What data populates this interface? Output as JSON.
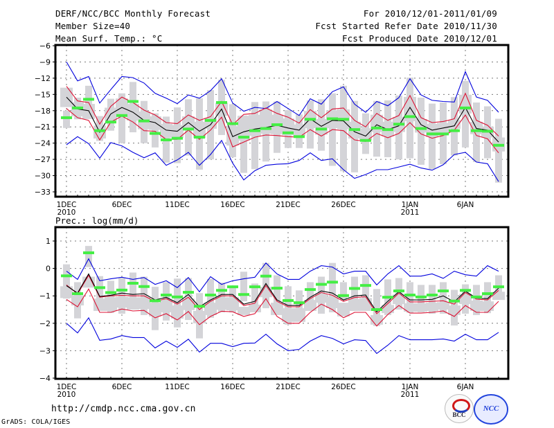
{
  "header": {
    "title": "DERF/NCC/BCC Monthly Forecast",
    "member_size": "Member Size=40",
    "variable1": "Mean Surf. Temp.: °C",
    "period": "For 2010/12/01-2011/01/09",
    "fcst_started": "Fcst Started Refer Date 2010/11/30",
    "fcst_produced": "Fcst Produced Date 2010/12/01"
  },
  "footer": {
    "url": "http://cmdp.ncc.cma.gov.cn",
    "credit": "GrADS: COLA/IGES",
    "logo1": "BCC",
    "logo2": "NCC"
  },
  "colors": {
    "outer": "#0000dd",
    "inner": "#dd1133",
    "mean": "#000000",
    "obs": "#44ee44",
    "box": "#d4d4d8"
  },
  "chart_data": [
    {
      "type": "line",
      "title": "Mean Surf. Temp.: °C",
      "ylim": [
        -33,
        -6
      ],
      "yticks": [
        -6,
        -9,
        -12,
        -15,
        -18,
        -21,
        -24,
        -27,
        -30,
        -33
      ],
      "xtick_labels": [
        {
          "day": 0,
          "label": "1DEC",
          "sub": "2010"
        },
        {
          "day": 5,
          "label": "6DEC"
        },
        {
          "day": 10,
          "label": "11DEC"
        },
        {
          "day": 15,
          "label": "16DEC"
        },
        {
          "day": 20,
          "label": "21DEC"
        },
        {
          "day": 25,
          "label": "26DEC"
        },
        {
          "day": 31,
          "label": "1JAN",
          "sub": "2011"
        },
        {
          "day": 36,
          "label": "6JAN"
        }
      ],
      "grid": true,
      "n_days": 40,
      "series": [
        {
          "name": "max",
          "role": "outer",
          "values": [
            -9,
            -12.5,
            -11.7,
            -16.6,
            -14.1,
            -11.7,
            -11.9,
            -12.9,
            -14.8,
            -15.7,
            -16.7,
            -15.1,
            -15.7,
            -14.3,
            -12.1,
            -16.6,
            -18.1,
            -17.4,
            -17.6,
            -16.3,
            -17.6,
            -18.9,
            -15.8,
            -16.8,
            -14.5,
            -13.6,
            -16.8,
            -18.3,
            -16.3,
            -17.1,
            -15.6,
            -12.1,
            -15.1,
            -16.1,
            -16.3,
            -16.4,
            -10.8,
            -15.5,
            -16.1,
            -18.3
          ]
        },
        {
          "name": "p75",
          "role": "inner",
          "values": [
            -13.5,
            -16.2,
            -16.5,
            -20.5,
            -17.2,
            -15.5,
            -16.5,
            -17.9,
            -18.8,
            -20.2,
            -20.4,
            -18.8,
            -19.8,
            -19.1,
            -16.3,
            -20.6,
            -18.7,
            -18.5,
            -17.5,
            -18.5,
            -19.2,
            -20.3,
            -17.8,
            -19.3,
            -17.7,
            -17.5,
            -19.8,
            -21.0,
            -18.5,
            -19.8,
            -18.9,
            -15.2,
            -19.3,
            -20.2,
            -20.0,
            -19.5,
            -14.8,
            -19.8,
            -20.7,
            -22.7
          ]
        },
        {
          "name": "mean",
          "role": "mean",
          "values": [
            -15.5,
            -17.7,
            -18,
            -22,
            -18.6,
            -17.4,
            -18.3,
            -19.8,
            -20.2,
            -21.6,
            -21.8,
            -20.2,
            -21.8,
            -20.6,
            -17.7,
            -22.8,
            -21.9,
            -21.4,
            -21.1,
            -20.7,
            -21.2,
            -21.6,
            -19.5,
            -20.9,
            -19.8,
            -19.9,
            -21.9,
            -22.7,
            -20.6,
            -21.5,
            -20.8,
            -17.4,
            -20.6,
            -21.6,
            -21.2,
            -20.8,
            -17.4,
            -21.3,
            -21.6,
            -23.8
          ]
        },
        {
          "name": "p25",
          "role": "inner",
          "values": [
            -17.6,
            -19.3,
            -19.8,
            -23.4,
            -20.1,
            -19,
            -20.1,
            -21.7,
            -21.8,
            -23.3,
            -23.3,
            -21.6,
            -23.3,
            -21.6,
            -19.2,
            -24.7,
            -23.8,
            -22.9,
            -22.5,
            -22.6,
            -22.8,
            -22.9,
            -21.5,
            -22.7,
            -21.5,
            -21.7,
            -23.4,
            -23.7,
            -22.2,
            -23.0,
            -22.2,
            -20.2,
            -22.3,
            -23.1,
            -22.6,
            -21.6,
            -18.8,
            -22.6,
            -23.2,
            -25.8
          ]
        },
        {
          "name": "min",
          "role": "outer",
          "values": [
            -24.3,
            -22.8,
            -24.1,
            -26.8,
            -23.9,
            -24.5,
            -25.7,
            -26.7,
            -25.8,
            -28.1,
            -27.1,
            -25.7,
            -28.1,
            -26.1,
            -23.5,
            -27.7,
            -30.8,
            -29.1,
            -28.1,
            -27.9,
            -27.8,
            -27.2,
            -25.8,
            -27.2,
            -26.9,
            -28.9,
            -30.5,
            -29.8,
            -28.9,
            -28.9,
            -28.4,
            -27.9,
            -28.6,
            -29.0,
            -28.0,
            -26.1,
            -25.7,
            -27.5,
            -27.8,
            -31.1
          ]
        },
        {
          "name": "observed",
          "role": "obs",
          "values": [
            -19.3,
            -17.5,
            -15.9,
            -21.7,
            -20.1,
            -18.9,
            -16.3,
            -19.9,
            -22.2,
            -23.4,
            -23.1,
            -21.4,
            -22.9,
            -19.8,
            -16.5,
            -20.4,
            -22.9,
            -21.7,
            -21.3,
            -20.6,
            -22.1,
            -22.8,
            -19.6,
            -21.4,
            -19.5,
            -19.6,
            -21.5,
            -23.5,
            -21.2,
            -21.5,
            -20.5,
            -19.1,
            -21.3,
            -22.3,
            -22.3,
            -21.7,
            -17.5,
            -21.7,
            -21.8,
            -24.4
          ]
        },
        {
          "name": "ensemble_box_hi",
          "role": "box",
          "values": [
            -18,
            -15.6,
            -13.4,
            -19,
            -15.8,
            -14.8,
            -12.7,
            -16.2,
            -18.5,
            -19.1,
            -17.4,
            -15.9,
            -15.7,
            -14.2,
            -12.3,
            -16.8,
            -18.9,
            -16.4,
            -16.3,
            -16.3,
            -17.9,
            -18.7,
            -16.1,
            -15.9,
            -14.8,
            -13.4,
            -16.2,
            -18.5,
            -16.2,
            -16.1,
            -15.2,
            -11.9,
            -15.6,
            -16.7,
            -16.5,
            -15.5,
            -12.5,
            -16.5,
            -17.2,
            -19.5
          ]
        },
        {
          "name": "ensemble_box_lo",
          "role": "box",
          "values": [
            -21.2,
            -19.6,
            -17.9,
            -23.6,
            -21.7,
            -24,
            -22.0,
            -24.0,
            -24.8,
            -27.6,
            -27.7,
            -26.3,
            -28.9,
            -27.0,
            -22.5,
            -26.6,
            -29.5,
            -28.8,
            -27.4,
            -25.8,
            -24.9,
            -24.9,
            -25.0,
            -25.4,
            -28.2,
            -29.2,
            -29.4,
            -26.0,
            -26.5,
            -26.6,
            -27.0,
            -26.8,
            -28.0,
            -28.8,
            -27.9,
            -26.3,
            -24.8,
            -27.5,
            -26.8,
            -31.3
          ]
        }
      ]
    },
    {
      "type": "line",
      "title": "Prec.: log(mm/d)",
      "ylim": [
        -4,
        1.5
      ],
      "yticks": [
        1,
        0,
        -1,
        -2,
        -3,
        -4
      ],
      "xtick_labels": [
        {
          "day": 0,
          "label": "1DEC",
          "sub": "2010"
        },
        {
          "day": 5,
          "label": "6DEC"
        },
        {
          "day": 10,
          "label": "11DEC"
        },
        {
          "day": 15,
          "label": "16DEC"
        },
        {
          "day": 20,
          "label": "21DEC"
        },
        {
          "day": 25,
          "label": "26DEC"
        },
        {
          "day": 31,
          "label": "1JAN",
          "sub": "2011"
        },
        {
          "day": 36,
          "label": "6JAN"
        }
      ],
      "grid": true,
      "n_days": 40,
      "series": [
        {
          "name": "max",
          "role": "outer",
          "values": [
            -0.1,
            -0.4,
            0.35,
            -0.45,
            -0.38,
            -0.32,
            -0.4,
            -0.33,
            -0.58,
            -0.45,
            -0.7,
            -0.33,
            -0.85,
            -0.3,
            -0.58,
            -0.45,
            -0.38,
            -0.32,
            0.2,
            -0.2,
            -0.4,
            -0.4,
            -0.1,
            0.1,
            0.05,
            -0.2,
            -0.1,
            -0.1,
            -0.6,
            -0.2,
            0.1,
            -0.28,
            -0.28,
            -0.2,
            -0.36,
            -0.1,
            -0.23,
            -0.28,
            0.1,
            -0.1
          ]
        },
        {
          "name": "p75",
          "role": "inner",
          "values": [
            -0.6,
            -0.93,
            -0.25,
            -1.05,
            -1.0,
            -0.98,
            -1.0,
            -1.0,
            -1.2,
            -1.1,
            -1.3,
            -1.05,
            -1.5,
            -1.2,
            -1.0,
            -1.0,
            -1.35,
            -1.27,
            -0.62,
            -1.2,
            -1.4,
            -1.4,
            -1.1,
            -0.88,
            -0.98,
            -1.2,
            -1.06,
            -1.03,
            -1.65,
            -1.28,
            -0.9,
            -1.22,
            -1.22,
            -1.2,
            -1.18,
            -1.3,
            -0.88,
            -1.12,
            -1.15,
            -0.8
          ]
        },
        {
          "name": "mean",
          "role": "mean",
          "values": [
            -0.63,
            -0.9,
            -0.2,
            -1.02,
            -0.98,
            -0.9,
            -0.95,
            -0.92,
            -1.15,
            -1.05,
            -1.25,
            -0.95,
            -1.4,
            -1.15,
            -0.95,
            -0.95,
            -1.3,
            -1.2,
            -0.55,
            -1.15,
            -1.35,
            -1.35,
            -1.05,
            -0.82,
            -0.9,
            -1.15,
            -1.0,
            -0.97,
            -1.58,
            -1.2,
            -0.85,
            -1.15,
            -1.15,
            -1.13,
            -1.0,
            -1.22,
            -0.83,
            -1.08,
            -1.1,
            -0.72
          ]
        },
        {
          "name": "p25",
          "role": "inner",
          "values": [
            -1.13,
            -1.4,
            -0.75,
            -1.6,
            -1.6,
            -1.48,
            -1.55,
            -1.53,
            -1.8,
            -1.65,
            -1.88,
            -1.57,
            -2.05,
            -1.75,
            -1.56,
            -1.58,
            -1.75,
            -1.65,
            -1.1,
            -1.75,
            -2.0,
            -2.0,
            -1.6,
            -1.3,
            -1.5,
            -1.8,
            -1.6,
            -1.6,
            -2.1,
            -1.68,
            -1.35,
            -1.63,
            -1.63,
            -1.6,
            -1.55,
            -1.75,
            -1.35,
            -1.6,
            -1.6,
            -1.2
          ]
        },
        {
          "name": "min",
          "role": "outer",
          "values": [
            -2.0,
            -2.35,
            -1.8,
            -2.62,
            -2.57,
            -2.45,
            -2.52,
            -2.52,
            -2.9,
            -2.65,
            -2.88,
            -2.58,
            -3.05,
            -2.73,
            -2.73,
            -2.85,
            -2.73,
            -2.72,
            -2.4,
            -2.75,
            -3.0,
            -2.95,
            -2.65,
            -2.45,
            -2.55,
            -2.75,
            -2.6,
            -2.63,
            -3.1,
            -2.8,
            -2.45,
            -2.6,
            -2.6,
            -2.6,
            -2.57,
            -2.65,
            -2.4,
            -2.6,
            -2.6,
            -2.33
          ]
        },
        {
          "name": "observed",
          "role": "obs",
          "values": [
            -0.27,
            -0.92,
            0.57,
            -0.7,
            -0.88,
            -0.79,
            -0.54,
            -0.66,
            -1.18,
            -0.97,
            -1.04,
            -0.87,
            -1.38,
            -0.97,
            -0.8,
            -0.67,
            -0.95,
            -0.67,
            -0.28,
            -0.72,
            -1.17,
            -1.25,
            -0.77,
            -0.58,
            -0.5,
            -0.99,
            -0.73,
            -0.62,
            -1.5,
            -1.05,
            -0.82,
            -0.97,
            -1.04,
            -0.97,
            -0.82,
            -1.19,
            -0.8,
            -1.04,
            -0.92,
            -0.67
          ]
        },
        {
          "name": "ensemble_box_hi",
          "role": "box",
          "values": [
            0.15,
            -0.5,
            0.82,
            -0.28,
            -0.45,
            -0.35,
            -0.15,
            -0.3,
            -0.67,
            -0.5,
            -0.37,
            -0.35,
            -0.9,
            -0.38,
            -0.52,
            -0.7,
            -0.12,
            -0.55,
            0.2,
            -0.25,
            -0.65,
            -0.8,
            -0.5,
            -0.3,
            0.2,
            -0.5,
            -0.3,
            -0.25,
            -0.75,
            -0.4,
            -0.35,
            -0.5,
            -0.6,
            -0.6,
            -0.5,
            -0.78,
            -0.58,
            -0.6,
            -0.5,
            -0.25
          ]
        },
        {
          "name": "ensemble_box_lo",
          "role": "box",
          "values": [
            -1.1,
            -1.82,
            0.05,
            -1.27,
            -1.62,
            -1.65,
            -1.43,
            -1.7,
            -2.25,
            -1.9,
            -2.15,
            -1.88,
            -2.55,
            -1.8,
            -1.6,
            -1.6,
            -1.2,
            -1.55,
            -1.45,
            -1.5,
            -2.05,
            -1.85,
            -1.5,
            -1.65,
            -1.6,
            -1.15,
            -1.55,
            -1.5,
            -2.1,
            -1.7,
            -1.5,
            -1.62,
            -1.6,
            -1.65,
            -1.65,
            -2.08,
            -1.65,
            -1.7,
            -1.63,
            -1.05
          ]
        }
      ]
    }
  ]
}
